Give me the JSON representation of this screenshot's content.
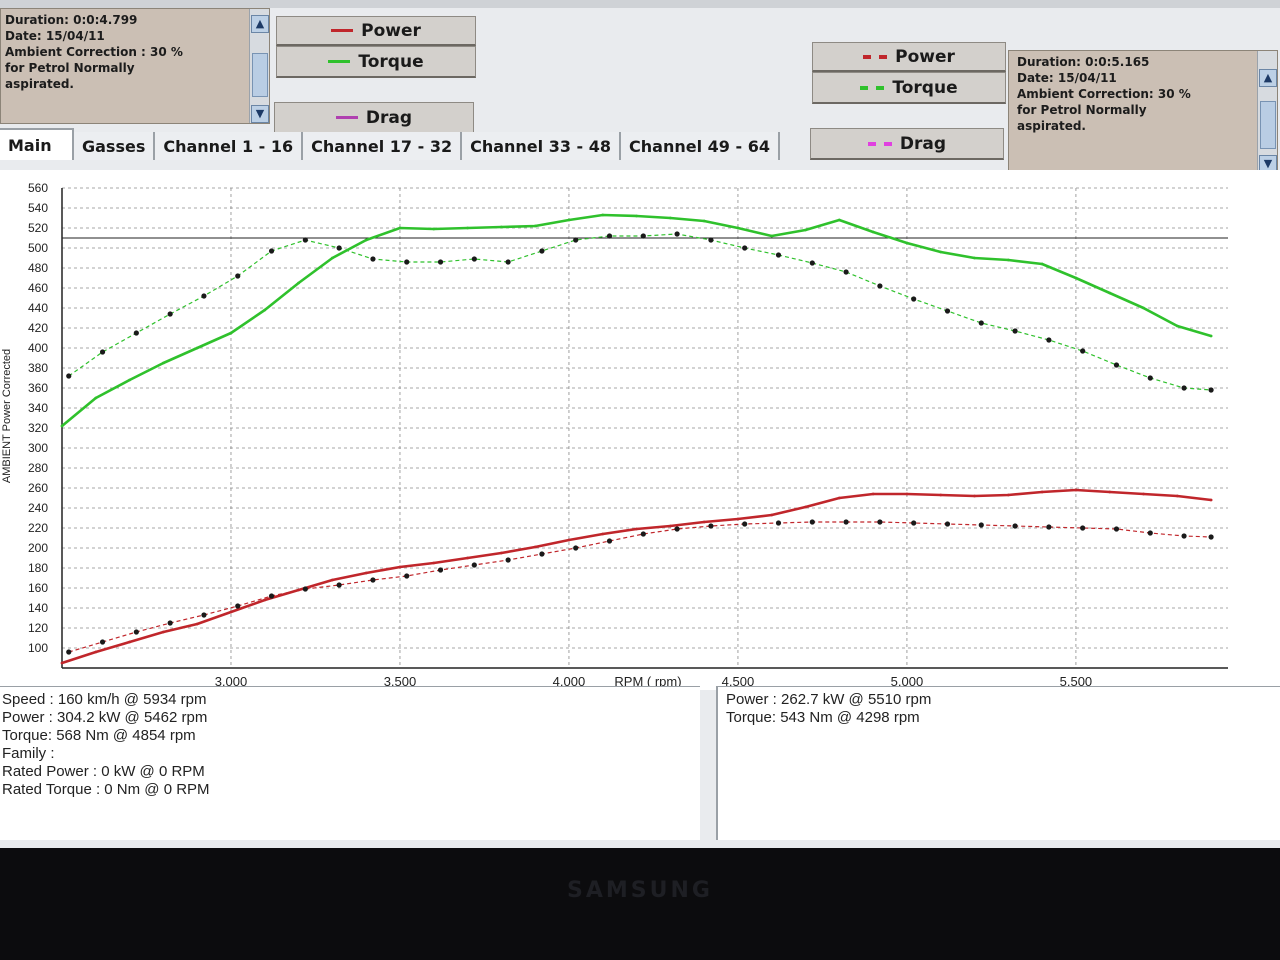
{
  "left_info": {
    "lines": [
      "Duration: 0:0:4.799",
      "Date: 15/04/11",
      "Ambient Correction : 30 %",
      "for Petrol Normally",
      "aspirated."
    ]
  },
  "right_info": {
    "lines": [
      "Duration: 0:0:5.165",
      "Date: 15/04/11",
      "Ambient Correction: 30 %",
      "for Petrol Normally",
      "aspirated."
    ]
  },
  "legend_left": {
    "power": "Power",
    "torque": "Torque",
    "drag": "Drag"
  },
  "legend_right": {
    "power": "Power",
    "torque": "Torque",
    "drag": "Drag"
  },
  "tabs": [
    "Main",
    "Gasses",
    "Channel 1 - 16",
    "Channel 17 - 32",
    "Channel 33 - 48",
    "Channel 49 - 64"
  ],
  "stats_left": [
    "Speed : 160 km/h @ 5934 rpm",
    "Power : 304.2 kW @ 5462 rpm",
    "Torque: 568 Nm @ 4854 rpm",
    "Family :",
    "Rated Power : 0 kW @ 0 RPM",
    "Rated Torque : 0 Nm @ 0 RPM"
  ],
  "stats_right": [
    "Power : 262.7 kW @ 5510 rpm",
    "Torque: 543 Nm @ 4298 rpm"
  ],
  "bezel_brand": "SAMSUNG",
  "colors": {
    "power": "#c0262b",
    "torque": "#2fc12c",
    "drag": "#b040b0",
    "drag_dashed": "#e040e0",
    "grid": "#8a8a8a"
  },
  "chart_data": {
    "type": "line",
    "xlabel": "RPM ( rpm)",
    "ylabel": "AMBIENT Power Corrected",
    "xlim": [
      2500,
      5950
    ],
    "ylim": [
      80,
      560
    ],
    "x_ticks": [
      3000,
      3500,
      4000,
      4500,
      5000,
      5500
    ],
    "x_tick_labels": [
      "3,000",
      "3,500",
      "4,000",
      "4,500",
      "5,000",
      "5,500"
    ],
    "y_ticks": [
      100,
      120,
      140,
      160,
      180,
      200,
      220,
      240,
      260,
      280,
      300,
      320,
      340,
      360,
      380,
      400,
      420,
      440,
      460,
      480,
      500,
      520,
      540,
      560
    ],
    "grid": true,
    "series": [
      {
        "name": "Torque",
        "style": "solid",
        "x": [
          2500,
          2600,
          2700,
          2800,
          2900,
          3000,
          3100,
          3200,
          3300,
          3400,
          3500,
          3600,
          3700,
          3800,
          3900,
          4000,
          4100,
          4200,
          4300,
          4400,
          4500,
          4600,
          4700,
          4800,
          4900,
          5000,
          5100,
          5200,
          5300,
          5400,
          5500,
          5600,
          5700,
          5800,
          5900
        ],
        "y": [
          322,
          350,
          368,
          385,
          400,
          415,
          438,
          465,
          490,
          508,
          520,
          519,
          520,
          521,
          522,
          528,
          533,
          532,
          530,
          527,
          520,
          512,
          518,
          528,
          516,
          505,
          496,
          490,
          488,
          484,
          470,
          455,
          440,
          422,
          412
        ]
      },
      {
        "name": "Torque",
        "style": "dashed",
        "x": [
          2520,
          2620,
          2720,
          2820,
          2920,
          3020,
          3120,
          3220,
          3320,
          3420,
          3520,
          3620,
          3720,
          3820,
          3920,
          4020,
          4120,
          4220,
          4320,
          4420,
          4520,
          4620,
          4720,
          4820,
          4920,
          5020,
          5120,
          5220,
          5320,
          5420,
          5520,
          5620,
          5720,
          5820,
          5900
        ],
        "y": [
          372,
          396,
          415,
          434,
          452,
          472,
          497,
          508,
          500,
          489,
          486,
          486,
          489,
          486,
          497,
          508,
          512,
          512,
          514,
          508,
          500,
          493,
          485,
          476,
          462,
          449,
          437,
          425,
          417,
          408,
          397,
          383,
          370,
          360,
          358
        ]
      },
      {
        "name": "Power",
        "style": "solid",
        "x": [
          2500,
          2600,
          2700,
          2800,
          2900,
          3000,
          3100,
          3200,
          3300,
          3400,
          3500,
          3600,
          3700,
          3800,
          3900,
          4000,
          4100,
          4200,
          4300,
          4400,
          4500,
          4600,
          4700,
          4800,
          4900,
          5000,
          5100,
          5200,
          5300,
          5400,
          5500,
          5600,
          5700,
          5800,
          5900
        ],
        "y": [
          85,
          96,
          106,
          116,
          124,
          136,
          148,
          158,
          168,
          175,
          181,
          185,
          190,
          195,
          201,
          208,
          214,
          219,
          222,
          226,
          229,
          233,
          241,
          250,
          254,
          254,
          253,
          252,
          253,
          256,
          258,
          256,
          254,
          252,
          248
        ]
      },
      {
        "name": "Power",
        "style": "dashed",
        "x": [
          2520,
          2620,
          2720,
          2820,
          2920,
          3020,
          3120,
          3220,
          3320,
          3420,
          3520,
          3620,
          3720,
          3820,
          3920,
          4020,
          4120,
          4220,
          4320,
          4420,
          4520,
          4620,
          4720,
          4820,
          4920,
          5020,
          5120,
          5220,
          5320,
          5420,
          5520,
          5620,
          5720,
          5820,
          5900
        ],
        "y": [
          96,
          106,
          116,
          125,
          133,
          142,
          152,
          159,
          163,
          168,
          172,
          178,
          183,
          188,
          194,
          200,
          207,
          214,
          219,
          222,
          224,
          225,
          226,
          226,
          226,
          225,
          224,
          223,
          222,
          221,
          220,
          219,
          215,
          212,
          211
        ]
      }
    ]
  }
}
